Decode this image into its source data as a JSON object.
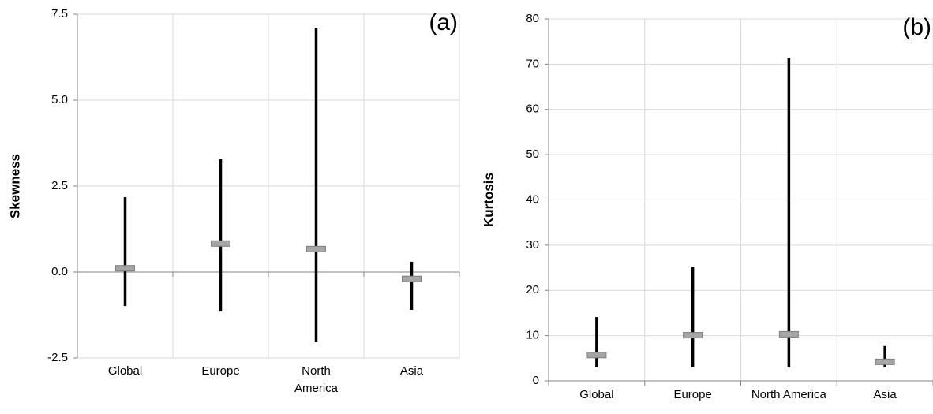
{
  "chart_data": [
    {
      "type": "range",
      "label": "(a)",
      "ylabel": "Skewness",
      "categories": [
        "Global",
        "Europe",
        "North America",
        "Asia"
      ],
      "high": [
        2.18,
        3.28,
        7.11,
        0.3
      ],
      "low": [
        -0.99,
        -1.15,
        -2.04,
        -1.1
      ],
      "mean": [
        0.11,
        0.83,
        0.67,
        -0.2
      ],
      "ylim": [
        -2.5,
        7.5
      ],
      "yticks": [
        -2.5,
        {
          "value": 0,
          "label": "0.0"
        },
        2.5,
        {
          "value": 5,
          "label": "5.0"
        },
        7.5
      ],
      "grid": true,
      "color": "#000000",
      "mean_color": "#a6a6a6"
    },
    {
      "type": "range",
      "label": "(b)",
      "ylabel": "Kurtosis",
      "categories": [
        "Global",
        "Europe",
        "North America",
        "Asia"
      ],
      "high": [
        14.1,
        25.1,
        71.4,
        7.7
      ],
      "low": [
        3.0,
        3.0,
        3.0,
        3.0
      ],
      "mean": [
        5.7,
        10.1,
        10.3,
        4.2
      ],
      "ylim": [
        0,
        80
      ],
      "yticks": [
        0,
        10,
        20,
        30,
        40,
        50,
        60,
        70,
        80
      ],
      "grid": true,
      "color": "#000000",
      "mean_color": "#a6a6a6"
    }
  ]
}
